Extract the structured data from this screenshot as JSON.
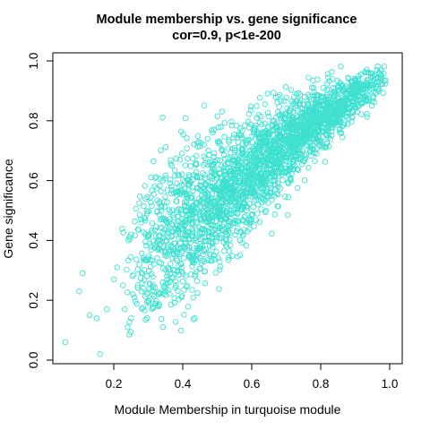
{
  "chart_data": {
    "type": "scatter",
    "title": "Module membership vs. gene significance",
    "subtitle": "cor=0.9, p<1e-200",
    "xlabel": "Module Membership in turquoise module",
    "ylabel": "Gene significance",
    "xlim": [
      0.05,
      1.0
    ],
    "ylim": [
      0.0,
      1.0
    ],
    "xticks": [
      "0.2",
      "0.4",
      "0.6",
      "0.8",
      "1.0"
    ],
    "yticks": [
      "0.0",
      "0.2",
      "0.4",
      "0.6",
      "0.8",
      "1.0"
    ],
    "grid": false,
    "legend": "none",
    "marker": "open-circle",
    "color": "#40E0D0",
    "outliers": [
      {
        "x": 0.06,
        "y": 0.06
      },
      {
        "x": 0.1,
        "y": 0.23
      },
      {
        "x": 0.11,
        "y": 0.29
      },
      {
        "x": 0.13,
        "y": 0.15
      },
      {
        "x": 0.15,
        "y": 0.14
      },
      {
        "x": 0.16,
        "y": 0.02
      },
      {
        "x": 0.18,
        "y": 0.17
      },
      {
        "x": 0.2,
        "y": 0.27
      },
      {
        "x": 0.21,
        "y": 0.31
      },
      {
        "x": 0.24,
        "y": 0.11
      },
      {
        "x": 0.25,
        "y": 0.14
      },
      {
        "x": 0.25,
        "y": 0.42
      },
      {
        "x": 0.27,
        "y": 0.25
      },
      {
        "x": 0.3,
        "y": 0.2
      },
      {
        "x": 0.33,
        "y": 0.18
      }
    ],
    "trend": [
      {
        "x": 0.2,
        "y": 0.28
      },
      {
        "x": 0.3,
        "y": 0.35
      },
      {
        "x": 0.4,
        "y": 0.45
      },
      {
        "x": 0.5,
        "y": 0.53
      },
      {
        "x": 0.6,
        "y": 0.63
      },
      {
        "x": 0.7,
        "y": 0.72
      },
      {
        "x": 0.8,
        "y": 0.8
      },
      {
        "x": 0.9,
        "y": 0.88
      },
      {
        "x": 0.97,
        "y": 0.93
      }
    ]
  }
}
